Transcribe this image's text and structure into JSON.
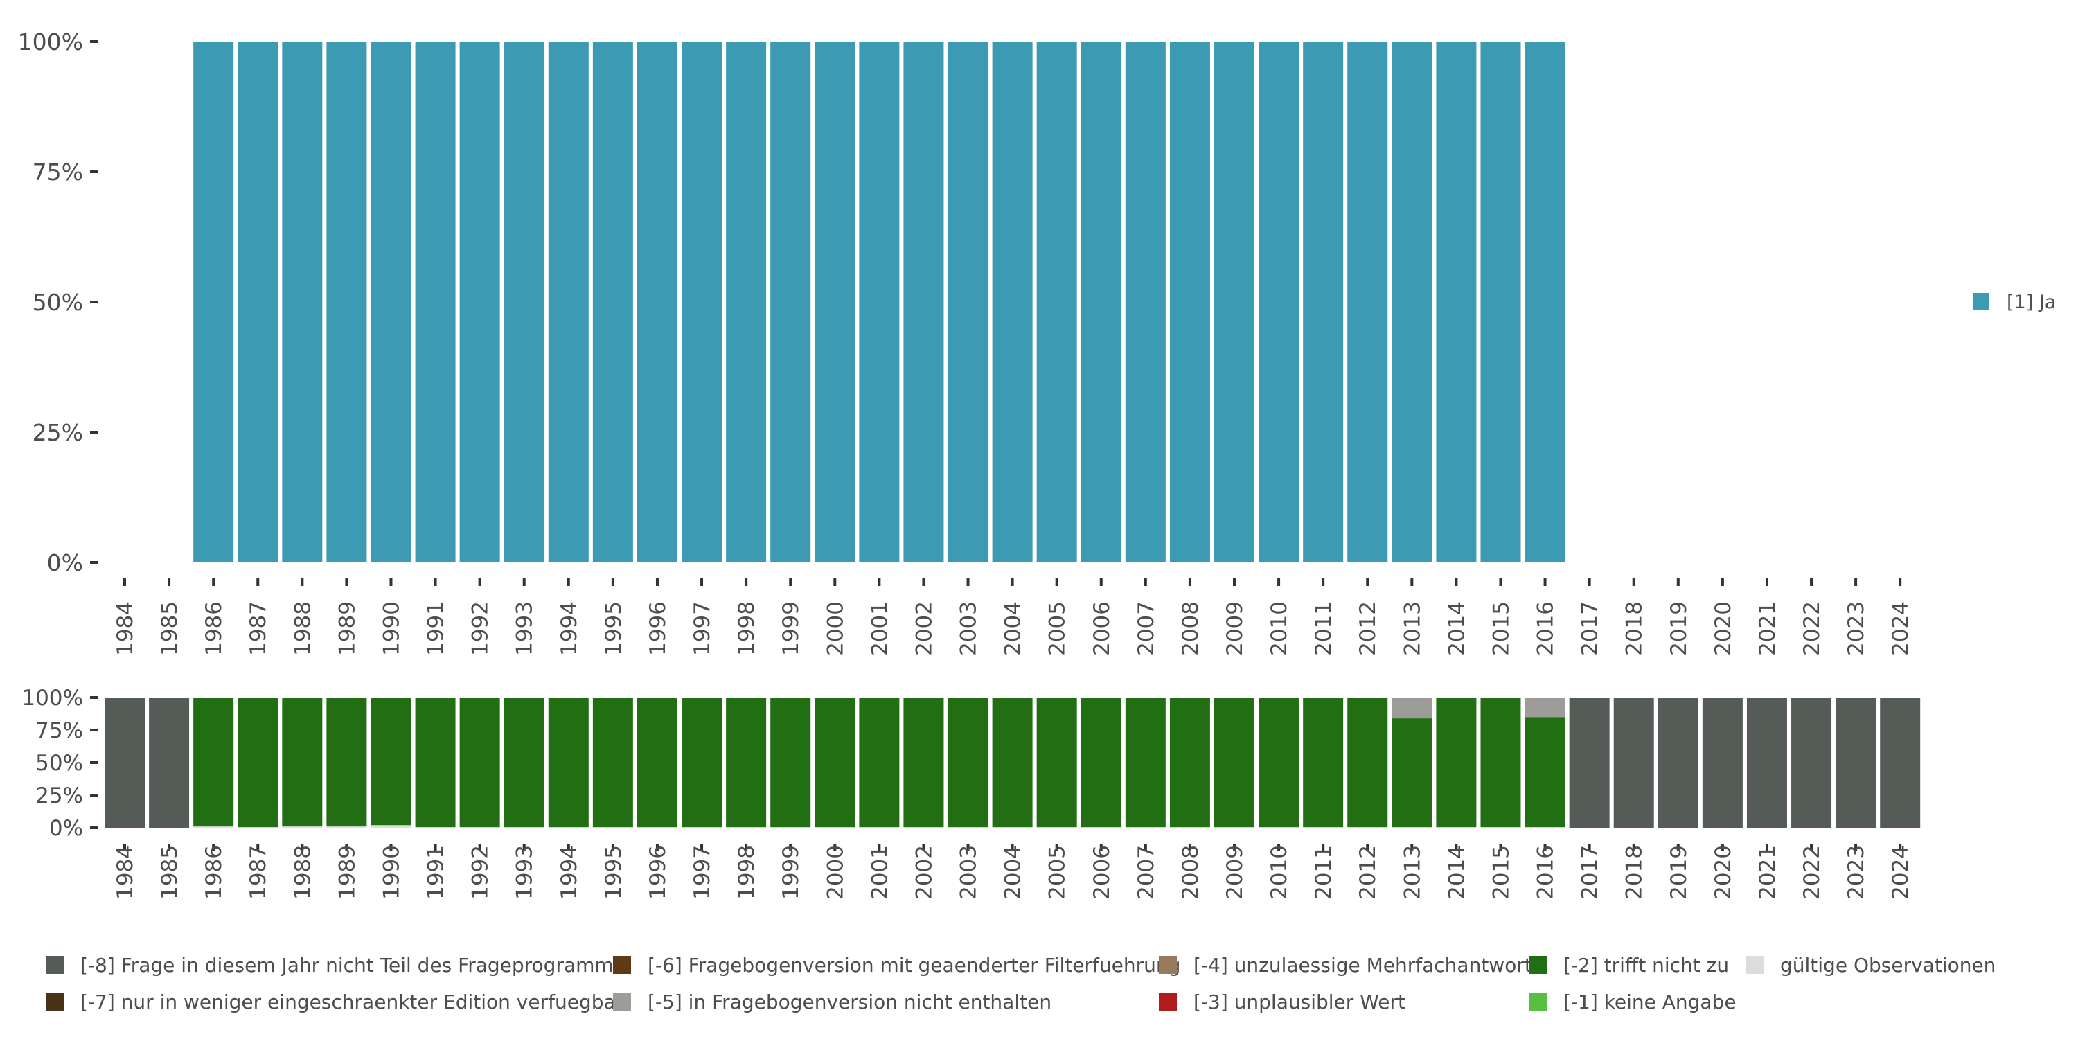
{
  "chart_data": [
    {
      "type": "bar",
      "stacked": true,
      "categories": [
        "1984",
        "1985",
        "1986",
        "1987",
        "1988",
        "1989",
        "1990",
        "1991",
        "1992",
        "1993",
        "1994",
        "1995",
        "1996",
        "1997",
        "1998",
        "1999",
        "2000",
        "2001",
        "2002",
        "2003",
        "2004",
        "2005",
        "2006",
        "2007",
        "2008",
        "2009",
        "2010",
        "2011",
        "2012",
        "2013",
        "2014",
        "2015",
        "2016",
        "2017",
        "2018",
        "2019",
        "2020",
        "2021",
        "2022",
        "2023",
        "2024"
      ],
      "ylim": [
        0,
        1
      ],
      "y_ticks": [
        0,
        0.25,
        0.5,
        0.75,
        1
      ],
      "y_tick_labels": [
        "0%",
        "25%",
        "50%",
        "75%",
        "100%"
      ],
      "series": [
        {
          "name": "[1] Ja",
          "color": "#3c9ab2",
          "values": [
            0,
            0,
            1,
            1,
            1,
            1,
            1,
            1,
            1,
            1,
            1,
            1,
            1,
            1,
            1,
            1,
            1,
            1,
            1,
            1,
            1,
            1,
            1,
            1,
            1,
            1,
            1,
            1,
            1,
            1,
            1,
            1,
            1,
            0,
            0,
            0,
            0,
            0,
            0,
            0,
            0
          ]
        }
      ],
      "legend": [
        {
          "label": "[1] Ja",
          "color": "#3c9ab2"
        }
      ],
      "legend_position": "right"
    },
    {
      "type": "bar",
      "stacked": true,
      "categories": [
        "1984",
        "1985",
        "1986",
        "1987",
        "1988",
        "1989",
        "1990",
        "1991",
        "1992",
        "1993",
        "1994",
        "1995",
        "1996",
        "1997",
        "1998",
        "1999",
        "2000",
        "2001",
        "2002",
        "2003",
        "2004",
        "2005",
        "2006",
        "2007",
        "2008",
        "2009",
        "2010",
        "2011",
        "2012",
        "2013",
        "2014",
        "2015",
        "2016",
        "2017",
        "2018",
        "2019",
        "2020",
        "2021",
        "2022",
        "2023",
        "2024"
      ],
      "ylim": [
        0,
        1
      ],
      "y_ticks": [
        0,
        0.25,
        0.5,
        0.75,
        1
      ],
      "y_tick_labels": [
        "0%",
        "25%",
        "50%",
        "75%",
        "100%"
      ],
      "series": [
        {
          "name": "gültige Observationen",
          "color": "#dcdedb",
          "values": [
            0,
            0,
            0.01,
            0.005,
            0.01,
            0.01,
            0.02,
            0.005,
            0.005,
            0.005,
            0.005,
            0.005,
            0.005,
            0.005,
            0.005,
            0.005,
            0.005,
            0.005,
            0.005,
            0.005,
            0.005,
            0.005,
            0.005,
            0.005,
            0.005,
            0.005,
            0.005,
            0.005,
            0.005,
            0.005,
            0.005,
            0.005,
            0.005,
            0,
            0,
            0,
            0,
            0,
            0,
            0,
            0
          ]
        },
        {
          "name": "[-2] trifft nicht zu",
          "color": "#226e13",
          "values": [
            0,
            0,
            0.99,
            0.995,
            0.99,
            0.99,
            0.98,
            0.995,
            0.995,
            0.995,
            0.995,
            0.995,
            0.995,
            0.995,
            0.995,
            0.995,
            0.995,
            0.995,
            0.995,
            0.995,
            0.995,
            0.995,
            0.995,
            0.995,
            0.995,
            0.995,
            0.995,
            0.995,
            0.995,
            0.835,
            0.995,
            0.995,
            0.845,
            0,
            0,
            0,
            0,
            0,
            0,
            0,
            0
          ]
        },
        {
          "name": "[-5] in Fragebogenversion nicht enthalten",
          "color": "#9c9d98",
          "values": [
            0,
            0,
            0,
            0,
            0,
            0,
            0,
            0,
            0,
            0,
            0,
            0,
            0,
            0,
            0,
            0,
            0,
            0,
            0,
            0,
            0,
            0,
            0,
            0,
            0,
            0,
            0,
            0,
            0,
            0.16,
            0,
            0,
            0.15,
            0,
            0,
            0,
            0,
            0,
            0,
            0,
            0
          ]
        },
        {
          "name": "[-8] Frage in diesem Jahr nicht Teil des Frageprogramms",
          "color": "#555b56",
          "values": [
            1,
            1,
            0,
            0,
            0,
            0,
            0,
            0,
            0,
            0,
            0,
            0,
            0,
            0,
            0,
            0,
            0,
            0,
            0,
            0,
            0,
            0,
            0,
            0,
            0,
            0,
            0,
            0,
            0,
            0,
            0,
            0,
            0,
            1,
            1,
            1,
            1,
            1,
            1,
            1,
            1
          ]
        }
      ],
      "legend": [
        {
          "label": "[-8] Frage in diesem Jahr nicht Teil des Frageprogramms",
          "color": "#555b56"
        },
        {
          "label": "[-7] nur in weniger eingeschraenkter Edition verfuegbar",
          "color": "#4a3218"
        },
        {
          "label": "[-6] Fragebogenversion mit geaenderter Filterfuehrung",
          "color": "#5e3a17"
        },
        {
          "label": "[-5] in Fragebogenversion nicht enthalten",
          "color": "#9c9d98"
        },
        {
          "label": "[-4] unzulaessige Mehrfachantwort",
          "color": "#987a5e"
        },
        {
          "label": "[-3] unplausibler Wert",
          "color": "#b01c1c"
        },
        {
          "label": "[-2] trifft nicht zu",
          "color": "#226e13"
        },
        {
          "label": "[-1] keine Angabe",
          "color": "#57c043"
        },
        {
          "label": "gültige Observationen",
          "color": "#dcdedb"
        }
      ],
      "legend_position": "bottom"
    }
  ]
}
